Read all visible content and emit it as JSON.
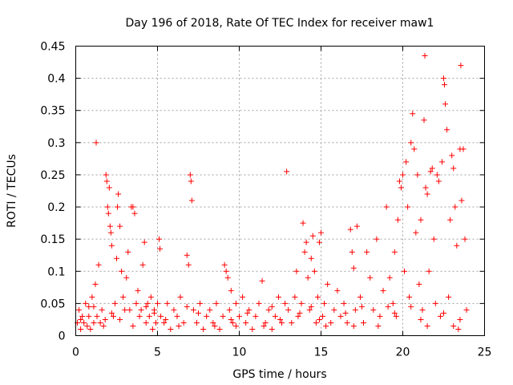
{
  "chart_data": {
    "type": "scatter",
    "title": "Day 196 of 2018, Rate Of TEC Index for receiver maw1",
    "xlabel": "GPS time / hours",
    "ylabel": "ROTI / TECUs",
    "xlim": [
      0,
      25
    ],
    "ylim": [
      0,
      0.45
    ],
    "x_ticks": [
      0,
      5,
      10,
      15,
      20,
      25
    ],
    "y_ticks": [
      0,
      0.05,
      0.1,
      0.15,
      0.2,
      0.25,
      0.3,
      0.35,
      0.4,
      0.45
    ],
    "grid": true,
    "marker": "plus",
    "color": "#ff0000",
    "series": [
      {
        "name": "ROTI",
        "points": [
          [
            0.1,
            0.02
          ],
          [
            0.2,
            0.04
          ],
          [
            0.3,
            0.01
          ],
          [
            0.4,
            0.03
          ],
          [
            0.5,
            0.02
          ],
          [
            0.6,
            0.05
          ],
          [
            0.7,
            0.015
          ],
          [
            0.8,
            0.03
          ],
          [
            0.9,
            0.01
          ],
          [
            1.0,
            0.06
          ],
          [
            1.1,
            0.02
          ],
          [
            1.2,
            0.08
          ],
          [
            1.25,
            0.3
          ],
          [
            1.3,
            0.03
          ],
          [
            1.4,
            0.11
          ],
          [
            1.5,
            0.02
          ],
          [
            1.6,
            0.04
          ],
          [
            1.7,
            0.015
          ],
          [
            1.8,
            0.025
          ],
          [
            1.85,
            0.25
          ],
          [
            1.9,
            0.24
          ],
          [
            1.95,
            0.2
          ],
          [
            2.0,
            0.19
          ],
          [
            2.05,
            0.23
          ],
          [
            2.1,
            0.17
          ],
          [
            2.15,
            0.16
          ],
          [
            2.2,
            0.14
          ],
          [
            2.3,
            0.03
          ],
          [
            2.4,
            0.05
          ],
          [
            2.5,
            0.12
          ],
          [
            2.55,
            0.2
          ],
          [
            2.6,
            0.22
          ],
          [
            2.7,
            0.17
          ],
          [
            2.8,
            0.1
          ],
          [
            2.9,
            0.06
          ],
          [
            3.0,
            0.04
          ],
          [
            3.1,
            0.09
          ],
          [
            3.2,
            0.13
          ],
          [
            3.3,
            0.04
          ],
          [
            3.4,
            0.2
          ],
          [
            3.5,
            0.2
          ],
          [
            3.6,
            0.19
          ],
          [
            3.7,
            0.05
          ],
          [
            3.8,
            0.07
          ],
          [
            3.9,
            0.03
          ],
          [
            4.0,
            0.04
          ],
          [
            4.1,
            0.11
          ],
          [
            4.2,
            0.145
          ],
          [
            4.3,
            0.02
          ],
          [
            4.4,
            0.05
          ],
          [
            4.5,
            0.03
          ],
          [
            4.6,
            0.06
          ],
          [
            4.7,
            0.01
          ],
          [
            4.8,
            0.04
          ],
          [
            4.9,
            0.02
          ],
          [
            5.0,
            0.05
          ],
          [
            5.1,
            0.15
          ],
          [
            5.15,
            0.135
          ],
          [
            5.2,
            0.03
          ],
          [
            5.4,
            0.02
          ],
          [
            5.6,
            0.05
          ],
          [
            5.8,
            0.01
          ],
          [
            6.0,
            0.04
          ],
          [
            6.2,
            0.03
          ],
          [
            6.4,
            0.06
          ],
          [
            6.6,
            0.02
          ],
          [
            6.8,
            0.125
          ],
          [
            6.9,
            0.11
          ],
          [
            7.0,
            0.25
          ],
          [
            7.05,
            0.24
          ],
          [
            7.1,
            0.21
          ],
          [
            7.2,
            0.04
          ],
          [
            7.4,
            0.02
          ],
          [
            7.6,
            0.05
          ],
          [
            7.8,
            0.01
          ],
          [
            8.0,
            0.03
          ],
          [
            8.2,
            0.04
          ],
          [
            8.4,
            0.02
          ],
          [
            8.6,
            0.05
          ],
          [
            8.8,
            0.01
          ],
          [
            9.0,
            0.03
          ],
          [
            9.1,
            0.11
          ],
          [
            9.2,
            0.1
          ],
          [
            9.3,
            0.09
          ],
          [
            9.4,
            0.04
          ],
          [
            9.5,
            0.07
          ],
          [
            9.6,
            0.02
          ],
          [
            9.8,
            0.05
          ],
          [
            10.0,
            0.03
          ],
          [
            10.2,
            0.06
          ],
          [
            10.4,
            0.02
          ],
          [
            10.6,
            0.04
          ],
          [
            10.8,
            0.01
          ],
          [
            11.0,
            0.03
          ],
          [
            11.2,
            0.05
          ],
          [
            11.4,
            0.085
          ],
          [
            11.6,
            0.02
          ],
          [
            11.8,
            0.04
          ],
          [
            12.0,
            0.01
          ],
          [
            12.2,
            0.03
          ],
          [
            12.4,
            0.06
          ],
          [
            12.6,
            0.02
          ],
          [
            12.8,
            0.05
          ],
          [
            12.9,
            0.255
          ],
          [
            13.0,
            0.04
          ],
          [
            13.2,
            0.02
          ],
          [
            13.4,
            0.06
          ],
          [
            13.5,
            0.1
          ],
          [
            13.6,
            0.03
          ],
          [
            13.8,
            0.05
          ],
          [
            13.9,
            0.175
          ],
          [
            14.0,
            0.13
          ],
          [
            14.1,
            0.145
          ],
          [
            14.2,
            0.09
          ],
          [
            14.3,
            0.04
          ],
          [
            14.4,
            0.12
          ],
          [
            14.5,
            0.155
          ],
          [
            14.6,
            0.1
          ],
          [
            14.7,
            0.02
          ],
          [
            14.8,
            0.06
          ],
          [
            14.9,
            0.145
          ],
          [
            15.0,
            0.16
          ],
          [
            15.1,
            0.03
          ],
          [
            15.2,
            0.05
          ],
          [
            15.4,
            0.08
          ],
          [
            15.6,
            0.02
          ],
          [
            15.8,
            0.04
          ],
          [
            16.0,
            0.07
          ],
          [
            16.2,
            0.03
          ],
          [
            16.4,
            0.05
          ],
          [
            16.6,
            0.02
          ],
          [
            16.8,
            0.165
          ],
          [
            16.9,
            0.13
          ],
          [
            17.0,
            0.105
          ],
          [
            17.1,
            0.04
          ],
          [
            17.2,
            0.17
          ],
          [
            17.4,
            0.06
          ],
          [
            17.6,
            0.02
          ],
          [
            17.8,
            0.13
          ],
          [
            18.0,
            0.09
          ],
          [
            18.2,
            0.04
          ],
          [
            18.4,
            0.15
          ],
          [
            18.6,
            0.03
          ],
          [
            18.8,
            0.07
          ],
          [
            19.0,
            0.2
          ],
          [
            19.2,
            0.09
          ],
          [
            19.4,
            0.05
          ],
          [
            19.5,
            0.13
          ],
          [
            19.6,
            0.03
          ],
          [
            19.7,
            0.18
          ],
          [
            19.8,
            0.24
          ],
          [
            19.9,
            0.23
          ],
          [
            20.0,
            0.25
          ],
          [
            20.1,
            0.1
          ],
          [
            20.2,
            0.27
          ],
          [
            20.3,
            0.2
          ],
          [
            20.4,
            0.06
          ],
          [
            20.5,
            0.3
          ],
          [
            20.6,
            0.345
          ],
          [
            20.7,
            0.29
          ],
          [
            20.8,
            0.16
          ],
          [
            20.9,
            0.25
          ],
          [
            21.0,
            0.08
          ],
          [
            21.1,
            0.18
          ],
          [
            21.2,
            0.04
          ],
          [
            21.3,
            0.335
          ],
          [
            21.35,
            0.435
          ],
          [
            21.4,
            0.23
          ],
          [
            21.5,
            0.22
          ],
          [
            21.6,
            0.1
          ],
          [
            21.7,
            0.255
          ],
          [
            21.8,
            0.26
          ],
          [
            21.9,
            0.15
          ],
          [
            22.0,
            0.05
          ],
          [
            22.1,
            0.25
          ],
          [
            22.2,
            0.24
          ],
          [
            22.3,
            0.03
          ],
          [
            22.4,
            0.27
          ],
          [
            22.5,
            0.4
          ],
          [
            22.55,
            0.39
          ],
          [
            22.6,
            0.36
          ],
          [
            22.7,
            0.32
          ],
          [
            22.8,
            0.06
          ],
          [
            22.9,
            0.18
          ],
          [
            23.0,
            0.28
          ],
          [
            23.1,
            0.26
          ],
          [
            23.2,
            0.2
          ],
          [
            23.3,
            0.14
          ],
          [
            23.4,
            0.01
          ],
          [
            23.5,
            0.29
          ],
          [
            23.55,
            0.42
          ],
          [
            23.6,
            0.21
          ],
          [
            23.7,
            0.29
          ],
          [
            23.8,
            0.15
          ],
          [
            23.9,
            0.04
          ],
          [
            0.3,
            0.025
          ],
          [
            1.1,
            0.045
          ],
          [
            2.2,
            0.035
          ],
          [
            3.5,
            0.015
          ],
          [
            4.3,
            0.045
          ],
          [
            5.5,
            0.025
          ],
          [
            6.3,
            0.015
          ],
          [
            7.5,
            0.035
          ],
          [
            8.5,
            0.015
          ],
          [
            9.5,
            0.025
          ],
          [
            10.5,
            0.035
          ],
          [
            11.5,
            0.015
          ],
          [
            12.5,
            0.025
          ],
          [
            13.7,
            0.035
          ],
          [
            14.4,
            0.045
          ],
          [
            15.3,
            0.015
          ],
          [
            16.5,
            0.035
          ],
          [
            17.5,
            0.045
          ],
          [
            18.5,
            0.015
          ],
          [
            19.5,
            0.035
          ],
          [
            20.5,
            0.045
          ],
          [
            21.5,
            0.015
          ],
          [
            22.5,
            0.035
          ],
          [
            23.5,
            0.025
          ],
          [
            0.8,
            0.045
          ],
          [
            2.7,
            0.025
          ],
          [
            4.8,
            0.035
          ],
          [
            6.8,
            0.045
          ],
          [
            9.8,
            0.015
          ],
          [
            12.0,
            0.045
          ],
          [
            14.9,
            0.025
          ],
          [
            17.0,
            0.015
          ],
          [
            19.1,
            0.045
          ],
          [
            21.1,
            0.025
          ],
          [
            23.1,
            0.015
          ]
        ]
      }
    ]
  }
}
